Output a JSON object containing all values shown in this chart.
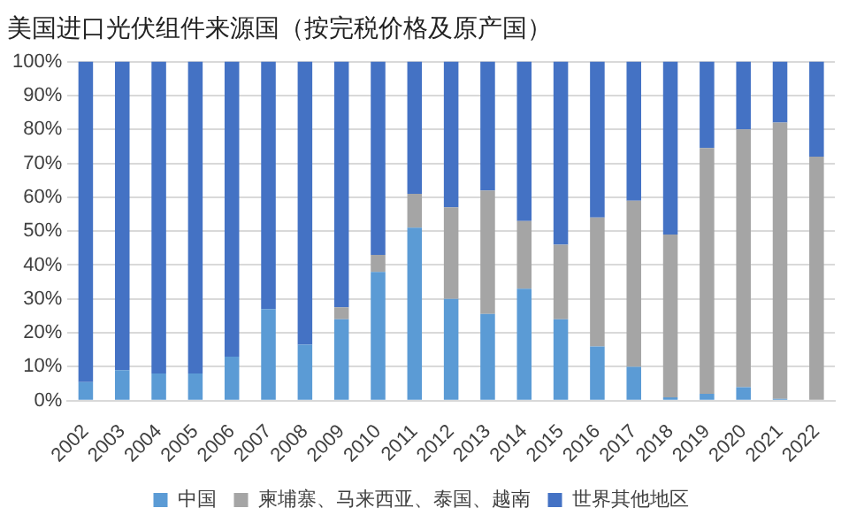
{
  "chart_data": {
    "type": "bar",
    "title": "美国进口光伏组件来源国（按完税价格及原产国）",
    "stacked": true,
    "legend": "bottom",
    "grid": "y",
    "categories": [
      "2002",
      "2003",
      "2004",
      "2005",
      "2006",
      "2007",
      "2008",
      "2009",
      "2010",
      "2011",
      "2012",
      "2013",
      "2014",
      "2015",
      "2016",
      "2017",
      "2018",
      "2019",
      "2020",
      "2021",
      "2022"
    ],
    "series": [
      {
        "name": "中国",
        "color": "#5b9bd5",
        "values": [
          5.5,
          9,
          8,
          8,
          13,
          27,
          16.5,
          24,
          38,
          51,
          30,
          25.6,
          33,
          24,
          16,
          10,
          1,
          2,
          4,
          0.5,
          0
        ]
      },
      {
        "name": "柬埔寨、马来西亚、泰国、越南",
        "color": "#a5a5a5",
        "values": [
          0,
          0,
          0,
          0,
          0,
          0,
          0,
          3.5,
          5,
          10,
          27,
          36.4,
          20,
          22,
          38,
          49,
          48,
          72.5,
          76,
          81.5,
          72
        ]
      },
      {
        "name": "世界其他地区",
        "color": "#4472c4",
        "values": [
          94.5,
          91,
          92,
          92,
          87,
          73,
          83.5,
          72.5,
          57,
          39,
          43,
          38,
          47,
          54,
          46,
          41,
          51,
          25.5,
          20,
          18,
          28
        ]
      }
    ],
    "ylim": [
      0,
      100
    ],
    "yticks": [
      {
        "value": 0,
        "label": "0%"
      },
      {
        "value": 10,
        "label": "10%"
      },
      {
        "value": 20,
        "label": "20%"
      },
      {
        "value": 30,
        "label": "30%"
      },
      {
        "value": 40,
        "label": "40%"
      },
      {
        "value": 50,
        "label": "50%"
      },
      {
        "value": 60,
        "label": "60%"
      },
      {
        "value": 70,
        "label": "70%"
      },
      {
        "value": 80,
        "label": "80%"
      },
      {
        "value": 90,
        "label": "90%"
      },
      {
        "value": 100,
        "label": "100%"
      }
    ]
  }
}
